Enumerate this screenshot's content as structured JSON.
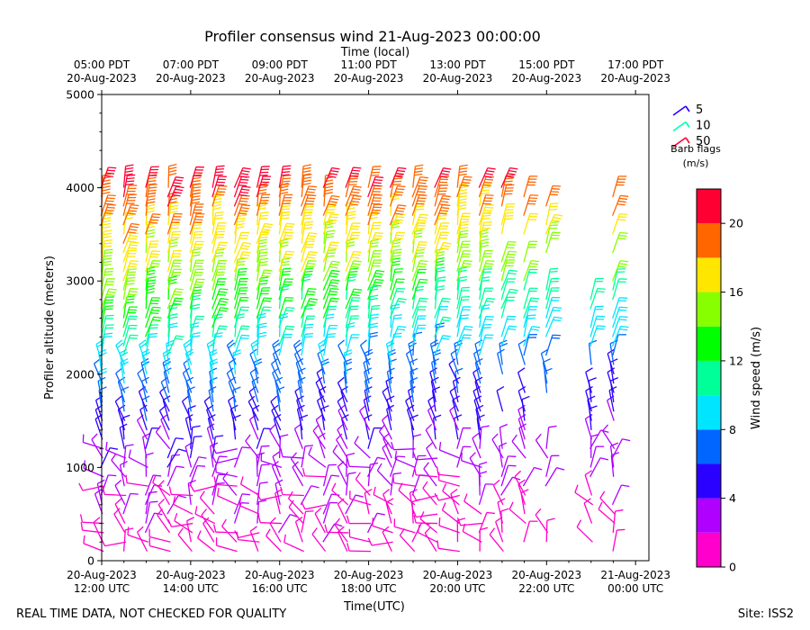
{
  "chart_data": {
    "type": "scatter",
    "title": "Profiler consensus wind 21-Aug-2023 00:00:00",
    "top_axis_label": "Time (local)",
    "xlabel": "Time(UTC)",
    "ylabel": "Profiler altitude (meters)",
    "xlim_hours_since_20Aug_1200UTC": [
      0,
      12.3
    ],
    "ylim": [
      0,
      5000
    ],
    "y_ticks": [
      0,
      1000,
      2000,
      3000,
      4000,
      5000
    ],
    "bottom_ticks": [
      {
        "h": 0,
        "line1": "20-Aug-2023",
        "line2": "12:00 UTC"
      },
      {
        "h": 2,
        "line1": "20-Aug-2023",
        "line2": "14:00 UTC"
      },
      {
        "h": 4,
        "line1": "20-Aug-2023",
        "line2": "16:00 UTC"
      },
      {
        "h": 6,
        "line1": "20-Aug-2023",
        "line2": "18:00 UTC"
      },
      {
        "h": 8,
        "line1": "20-Aug-2023",
        "line2": "20:00 UTC"
      },
      {
        "h": 10,
        "line1": "20-Aug-2023",
        "line2": "22:00 UTC"
      },
      {
        "h": 12,
        "line1": "21-Aug-2023",
        "line2": "00:00 UTC"
      }
    ],
    "top_ticks": [
      {
        "h": 0,
        "line1": "05:00 PDT",
        "line2": "20-Aug-2023"
      },
      {
        "h": 2,
        "line1": "07:00 PDT",
        "line2": "20-Aug-2023"
      },
      {
        "h": 4,
        "line1": "09:00 PDT",
        "line2": "20-Aug-2023"
      },
      {
        "h": 6,
        "line1": "11:00 PDT",
        "line2": "20-Aug-2023"
      },
      {
        "h": 8,
        "line1": "13:00 PDT",
        "line2": "20-Aug-2023"
      },
      {
        "h": 10,
        "line1": "15:00 PDT",
        "line2": "20-Aug-2023"
      },
      {
        "h": 12,
        "line1": "17:00 PDT",
        "line2": "20-Aug-2023"
      }
    ],
    "profile_times_h": [
      0,
      0.5,
      1.0,
      1.5,
      2.0,
      2.5,
      3.0,
      3.5,
      4.0,
      4.5,
      5.0,
      5.5,
      6.0,
      6.5,
      7.0,
      7.5,
      8.0,
      8.5,
      9.0,
      9.5,
      10.0,
      11.0,
      11.5
    ],
    "profile_top_m": [
      4050,
      4080,
      4080,
      4080,
      4080,
      4080,
      4080,
      4080,
      4080,
      4080,
      4080,
      4080,
      4080,
      4080,
      4080,
      4080,
      4080,
      4080,
      4080,
      4050,
      3800,
      2900,
      4050
    ],
    "barb_legend": [
      {
        "speed": 5,
        "label": "5",
        "color": "#2a00ff"
      },
      {
        "speed": 10,
        "label": "10",
        "color": "#00ffaa"
      },
      {
        "speed": 50,
        "label": "50",
        "color": "#ff0033"
      }
    ],
    "barb_legend_title": [
      "Barb flags",
      "(m/s)"
    ],
    "colorbar": {
      "label": "Wind speed (m/s)",
      "min": 0,
      "max": 22,
      "ticks": [
        0,
        4,
        8,
        12,
        16,
        20
      ],
      "bins": [
        {
          "lo": 0,
          "hi": 2,
          "color": "#ff00cc"
        },
        {
          "lo": 2,
          "hi": 4,
          "color": "#b000ff"
        },
        {
          "lo": 4,
          "hi": 6,
          "color": "#2a00ff"
        },
        {
          "lo": 6,
          "hi": 8,
          "color": "#0066ff"
        },
        {
          "lo": 8,
          "hi": 10,
          "color": "#00e5ff"
        },
        {
          "lo": 10,
          "hi": 12,
          "color": "#00ff99"
        },
        {
          "lo": 12,
          "hi": 14,
          "color": "#00ff00"
        },
        {
          "lo": 14,
          "hi": 16,
          "color": "#88ff00"
        },
        {
          "lo": 16,
          "hi": 18,
          "color": "#ffe600"
        },
        {
          "lo": 18,
          "hi": 20,
          "color": "#ff6600"
        },
        {
          "lo": 20,
          "hi": 22,
          "color": "#ff0033"
        }
      ]
    },
    "wind_speed_profile": [
      {
        "z": 0,
        "speed": 1
      },
      {
        "z": 600,
        "speed": 2
      },
      {
        "z": 1200,
        "speed": 4
      },
      {
        "z": 1500,
        "speed": 6
      },
      {
        "z": 1900,
        "speed": 8
      },
      {
        "z": 2300,
        "speed": 11
      },
      {
        "z": 2700,
        "speed": 14
      },
      {
        "z": 3100,
        "speed": 16
      },
      {
        "z": 3500,
        "speed": 18
      },
      {
        "z": 4000,
        "speed": 21
      }
    ]
  },
  "footer": {
    "left_note": "REAL TIME DATA, NOT CHECKED FOR QUALITY",
    "site": "Site: ISS2"
  }
}
